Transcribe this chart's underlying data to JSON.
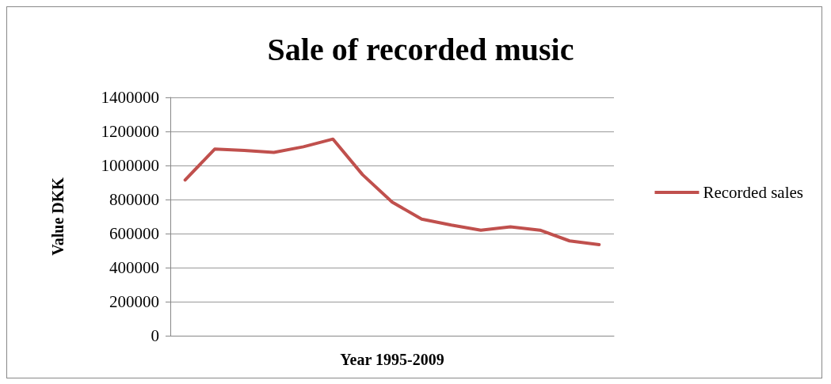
{
  "chart_data": {
    "type": "line",
    "title": "Sale of recorded music",
    "xlabel": "Year 1995-2009",
    "ylabel": "Value DKK",
    "categories": [
      null,
      null,
      null,
      null,
      null,
      null,
      null,
      null,
      null,
      null,
      null,
      null,
      null,
      null,
      null
    ],
    "series": [
      {
        "name": "Recorded sales",
        "color": "#c0504d",
        "values": [
          915000,
          1096000,
          1088000,
          1077000,
          1110000,
          1155000,
          946000,
          785000,
          685000,
          650000,
          620000,
          640000,
          620000,
          557000,
          535000
        ]
      }
    ],
    "ylim": [
      0,
      1400000
    ],
    "yticks": [
      0,
      200000,
      400000,
      600000,
      800000,
      1000000,
      1200000,
      1400000
    ],
    "grid": "y",
    "legend": "right",
    "marker": "none",
    "line_style": "solid"
  }
}
